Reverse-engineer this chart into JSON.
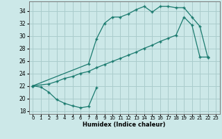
{
  "xlabel": "Humidex (Indice chaleur)",
  "background_color": "#cce8e8",
  "grid_color": "#aacccc",
  "line_color": "#1a7a6e",
  "xlim": [
    -0.5,
    23.5
  ],
  "ylim": [
    17.5,
    35.5
  ],
  "yticks": [
    18,
    20,
    22,
    24,
    26,
    28,
    30,
    32,
    34
  ],
  "xtick_labels": [
    "0",
    "1",
    "2",
    "3",
    "4",
    "5",
    "6",
    "7",
    "8",
    "9",
    "10",
    "11",
    "12",
    "13",
    "14",
    "15",
    "16",
    "17",
    "18",
    "19",
    "20",
    "21",
    "22",
    "23"
  ],
  "line1_x": [
    0,
    1,
    2,
    3,
    4,
    5,
    6,
    7,
    8
  ],
  "line1_y": [
    22.0,
    21.8,
    21.0,
    19.8,
    19.2,
    18.8,
    18.5,
    18.7,
    21.7
  ],
  "line2_x": [
    0,
    7,
    8,
    9,
    10,
    11,
    12,
    13,
    14,
    15,
    16,
    17,
    18,
    19,
    20,
    21,
    22
  ],
  "line2_y": [
    22.0,
    25.5,
    29.5,
    32.0,
    33.0,
    33.0,
    33.5,
    34.2,
    34.7,
    33.8,
    34.7,
    34.7,
    34.5,
    34.5,
    33.0,
    31.5,
    26.5
  ],
  "line3_x": [
    0,
    2,
    3,
    4,
    5,
    6,
    7,
    8,
    9,
    10,
    11,
    12,
    13,
    14,
    15,
    16,
    17,
    18,
    19,
    20,
    21,
    22
  ],
  "line3_y": [
    22.0,
    22.3,
    22.7,
    23.2,
    23.5,
    24.0,
    24.3,
    24.9,
    25.4,
    25.9,
    26.4,
    26.9,
    27.4,
    28.0,
    28.5,
    29.1,
    29.6,
    30.1,
    33.0,
    31.7,
    26.6,
    26.6
  ]
}
